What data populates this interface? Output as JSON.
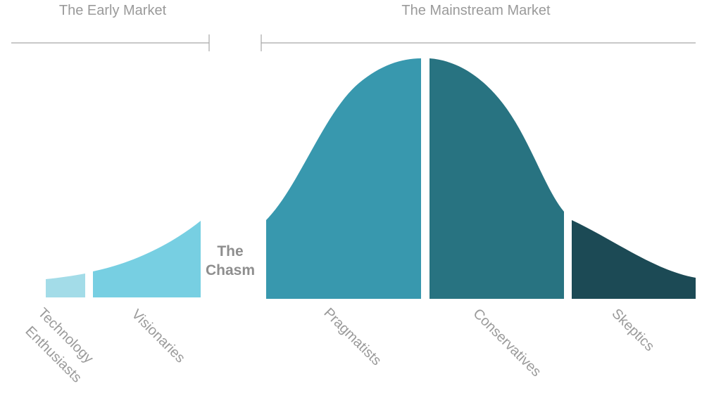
{
  "headers": {
    "early_market": "The Early Market",
    "mainstream_market": "The Mainstream Market"
  },
  "chasm": {
    "line1": "The",
    "line2": "Chasm"
  },
  "segments": [
    {
      "id": "technology-enthusiasts",
      "label_line1": "Technology",
      "label_line2": "Enthusiasts",
      "color": "#a3dce8"
    },
    {
      "id": "visionaries",
      "label": "Visionaries",
      "color": "#77cfe2"
    },
    {
      "id": "pragmatists",
      "label": "Pragmatists",
      "color": "#3898ae"
    },
    {
      "id": "conservatives",
      "label": "Conservatives",
      "color": "#287381"
    },
    {
      "id": "skeptics",
      "label": "Skeptics",
      "color": "#1c4a55"
    }
  ]
}
